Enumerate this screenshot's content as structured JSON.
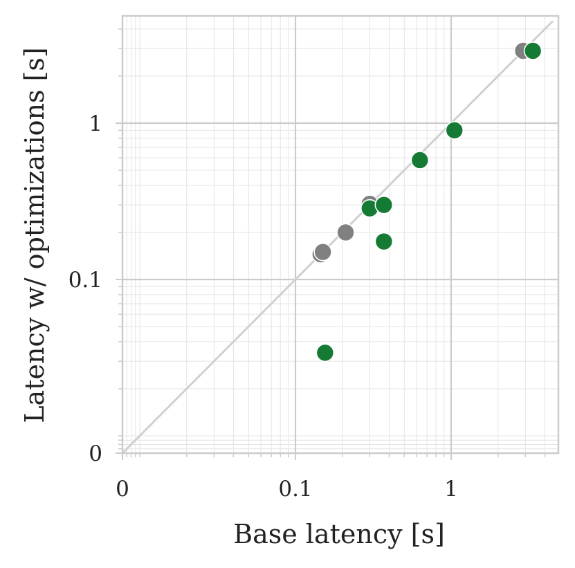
{
  "chart_data": {
    "type": "scatter",
    "xlabel": "Base latency [s]",
    "ylabel": "Latency w/ optimizations [s]",
    "x_scale": "symlog",
    "y_scale": "symlog",
    "xlim": [
      0,
      4.5
    ],
    "ylim": [
      0,
      4.5
    ],
    "x_ticks": [
      {
        "value": 0,
        "label": "0"
      },
      {
        "value": 0.1,
        "label": "0.1"
      },
      {
        "value": 1,
        "label": "1"
      }
    ],
    "y_ticks": [
      {
        "value": 0,
        "label": "0"
      },
      {
        "value": 0.1,
        "label": "0.1"
      },
      {
        "value": 1,
        "label": "1"
      }
    ],
    "grid": true,
    "reference_line": "y = x",
    "colors": {
      "grey_series": "#808080",
      "green_series": "#147a34",
      "grid_major": "#cccccc",
      "grid_minor": "#e4e4e4",
      "frame": "#cccccc",
      "diagonal": "#d0d0d0"
    },
    "series": [
      {
        "color": "#808080",
        "points": [
          {
            "x": 0.145,
            "y": 0.145
          },
          {
            "x": 0.15,
            "y": 0.15
          },
          {
            "x": 0.21,
            "y": 0.2
          },
          {
            "x": 0.3,
            "y": 0.305
          },
          {
            "x": 2.9,
            "y": 2.9
          }
        ]
      },
      {
        "color": "#147a34",
        "points": [
          {
            "x": 0.155,
            "y": 0.034
          },
          {
            "x": 0.3,
            "y": 0.285
          },
          {
            "x": 0.37,
            "y": 0.3
          },
          {
            "x": 0.37,
            "y": 0.175
          },
          {
            "x": 0.63,
            "y": 0.58
          },
          {
            "x": 1.05,
            "y": 0.9
          },
          {
            "x": 3.35,
            "y": 2.9
          }
        ]
      }
    ]
  }
}
